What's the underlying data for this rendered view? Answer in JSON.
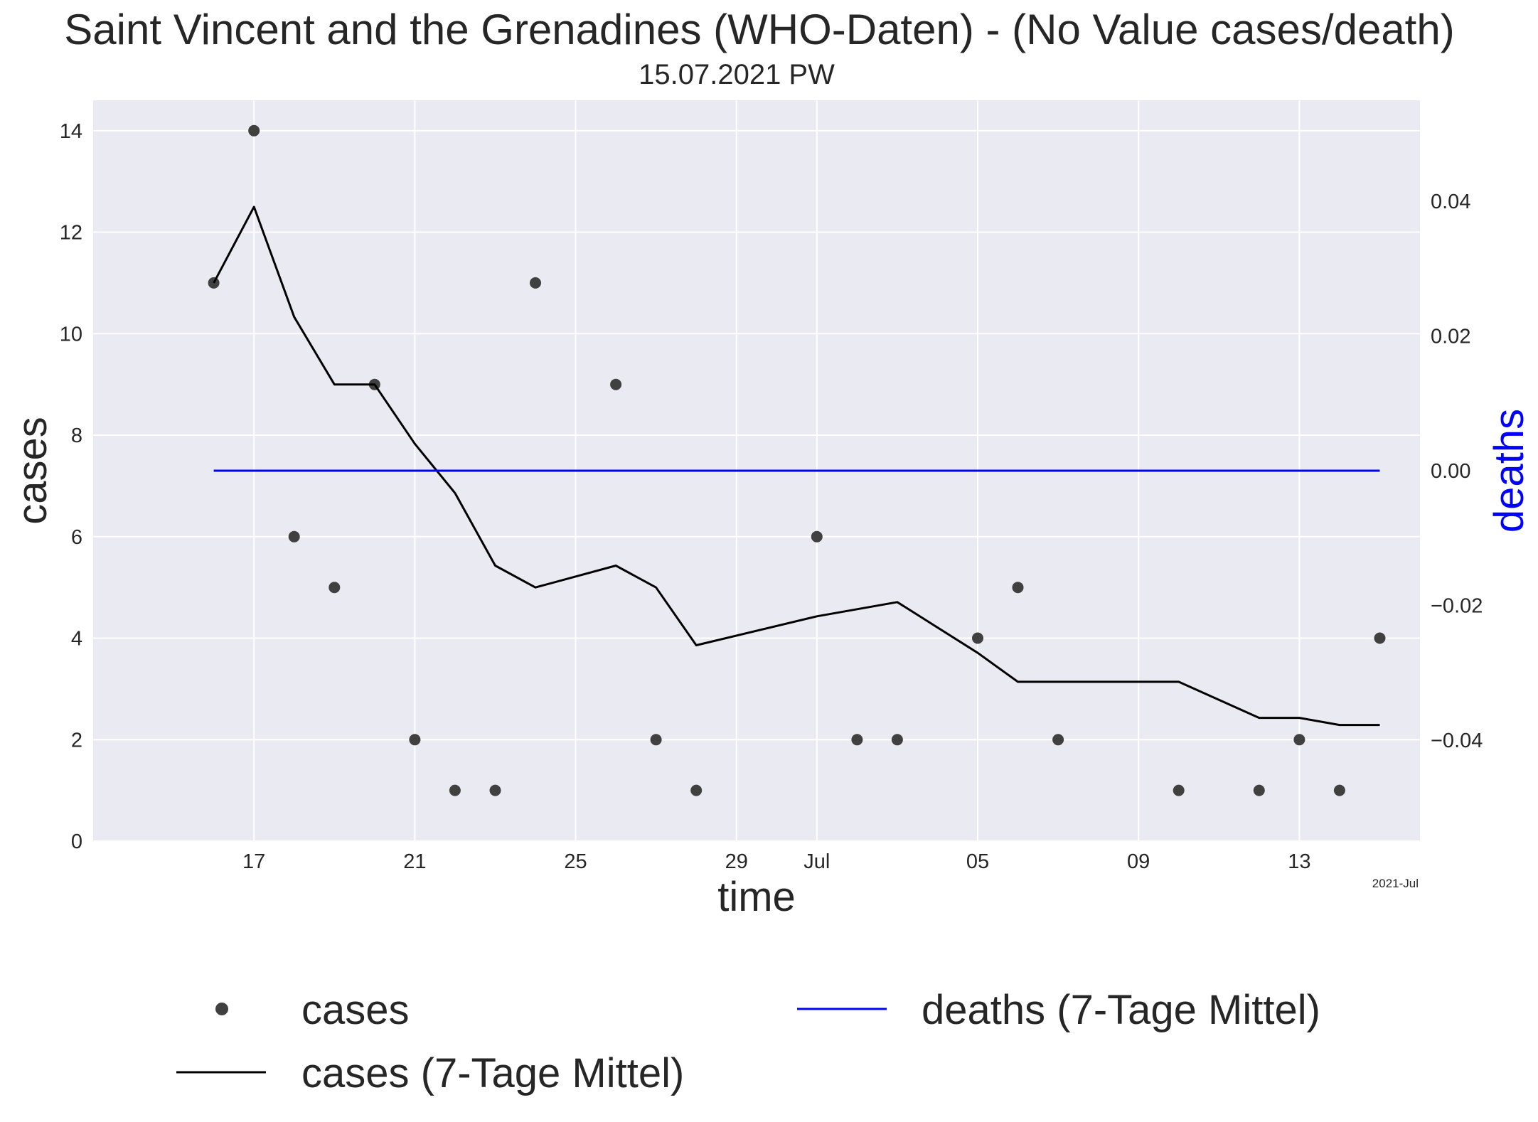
{
  "chart_data": {
    "type": "line",
    "title": "Saint Vincent and the Grenadines (WHO-Daten) - (No Value cases/death)",
    "subtitle": "15.07.2021 PW",
    "xlabel": "time",
    "ylabel_left": "cases",
    "ylabel_right": "deaths",
    "x_offset_label": "2021-Jul",
    "grid": true,
    "legend_placement": "bottom",
    "x_ticks": [
      {
        "date": "2021-06-17",
        "label": "17"
      },
      {
        "date": "2021-06-21",
        "label": "21"
      },
      {
        "date": "2021-06-25",
        "label": "25"
      },
      {
        "date": "2021-06-29",
        "label": "29"
      },
      {
        "date": "2021-07-01",
        "label": "Jul"
      },
      {
        "date": "2021-07-05",
        "label": "05"
      },
      {
        "date": "2021-07-09",
        "label": "09"
      },
      {
        "date": "2021-07-13",
        "label": "13"
      }
    ],
    "xlim": [
      "2021-06-13",
      "2021-07-16"
    ],
    "ylim_left": [
      0,
      14.6
    ],
    "yticks_left": [
      0,
      2,
      4,
      6,
      8,
      10,
      12,
      14
    ],
    "ylim_right": [
      -0.055,
      0.055
    ],
    "yticks_right": [
      -0.04,
      -0.02,
      0.0,
      0.02,
      0.04
    ],
    "ytick_labels_right": [
      "−0.04",
      "−0.02",
      "0.00",
      "0.02",
      "0.04"
    ],
    "series": [
      {
        "name": "cases",
        "style": "points",
        "axis": "left",
        "color": "#404040",
        "x": [
          "2021-06-16",
          "2021-06-17",
          "2021-06-18",
          "2021-06-19",
          "2021-06-20",
          "2021-06-21",
          "2021-06-22",
          "2021-06-23",
          "2021-06-24",
          "2021-06-26",
          "2021-06-27",
          "2021-06-28",
          "2021-07-01",
          "2021-07-02",
          "2021-07-03",
          "2021-07-05",
          "2021-07-06",
          "2021-07-07",
          "2021-07-10",
          "2021-07-12",
          "2021-07-13",
          "2021-07-14",
          "2021-07-15"
        ],
        "y": [
          11,
          14,
          6,
          5,
          9,
          2,
          1,
          1,
          11,
          9,
          2,
          1,
          6,
          2,
          2,
          4,
          5,
          2,
          1,
          1,
          2,
          1,
          4
        ]
      },
      {
        "name": "cases (7-Tage Mittel)",
        "style": "line",
        "axis": "left",
        "color": "#000000",
        "x": [
          "2021-06-16",
          "2021-06-17",
          "2021-06-18",
          "2021-06-19",
          "2021-06-20",
          "2021-06-21",
          "2021-06-22",
          "2021-06-23",
          "2021-06-24",
          "2021-06-26",
          "2021-06-27",
          "2021-06-28",
          "2021-07-01",
          "2021-07-03",
          "2021-07-05",
          "2021-07-06",
          "2021-07-07",
          "2021-07-10",
          "2021-07-12",
          "2021-07-13",
          "2021-07-14",
          "2021-07-15"
        ],
        "y": [
          11.0,
          12.5,
          10.33,
          9.0,
          9.0,
          7.83,
          6.86,
          5.43,
          5.0,
          5.43,
          5.0,
          3.86,
          4.43,
          4.71,
          3.71,
          3.14,
          3.14,
          3.14,
          2.43,
          2.43,
          2.29,
          2.29
        ]
      },
      {
        "name": "deaths (7-Tage Mittel)",
        "style": "line",
        "axis": "right",
        "color": "#0000ff",
        "x": [
          "2021-06-16",
          "2021-07-15"
        ],
        "y": [
          0.0,
          0.0
        ]
      }
    ]
  }
}
